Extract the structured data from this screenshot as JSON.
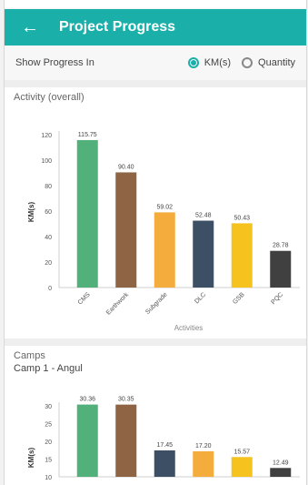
{
  "appbar": {
    "title": "Project Progress",
    "back_icon": "arrow-left-icon"
  },
  "toggle": {
    "label": "Show Progress In",
    "options": [
      {
        "label": "KM(s)",
        "selected": true
      },
      {
        "label": "Quantity",
        "selected": false
      }
    ]
  },
  "colors": {
    "accent": "#1aafa9"
  },
  "chart_data": [
    {
      "type": "bar",
      "title": "Activity (overall)",
      "xlabel": "Activities",
      "ylabel": "KM(s)",
      "ylim": [
        0,
        120
      ],
      "yticks": [
        0,
        20,
        40,
        60,
        80,
        100,
        120
      ],
      "categories": [
        "CMS",
        "Earthwork",
        "Subgrade",
        "DLC",
        "GSB",
        "PQC"
      ],
      "values": [
        115.75,
        90.4,
        59.02,
        52.48,
        50.43,
        28.78
      ],
      "labels": [
        "115.75",
        "90.40",
        "59.02",
        "52.48",
        "50.43",
        "28.78"
      ],
      "colors": [
        "#52b07a",
        "#8f6444",
        "#f4ac3c",
        "#3d4f64",
        "#f6c21e",
        "#404040"
      ]
    },
    {
      "type": "bar",
      "title": "Camps",
      "subtitle": "Camp 1 - Angul",
      "ylabel": "KM(s)",
      "ylim": [
        10,
        30
      ],
      "yticks": [
        10,
        15,
        20,
        25,
        30
      ],
      "values": [
        30.36,
        30.35,
        17.45,
        17.2,
        15.57,
        12.49
      ],
      "labels": [
        "30.36",
        "30.35",
        "17.45",
        "17.20",
        "15.57",
        "12.49"
      ],
      "colors": [
        "#52b07a",
        "#8f6444",
        "#3d4f64",
        "#f4ac3c",
        "#f6c21e",
        "#404040"
      ]
    }
  ]
}
